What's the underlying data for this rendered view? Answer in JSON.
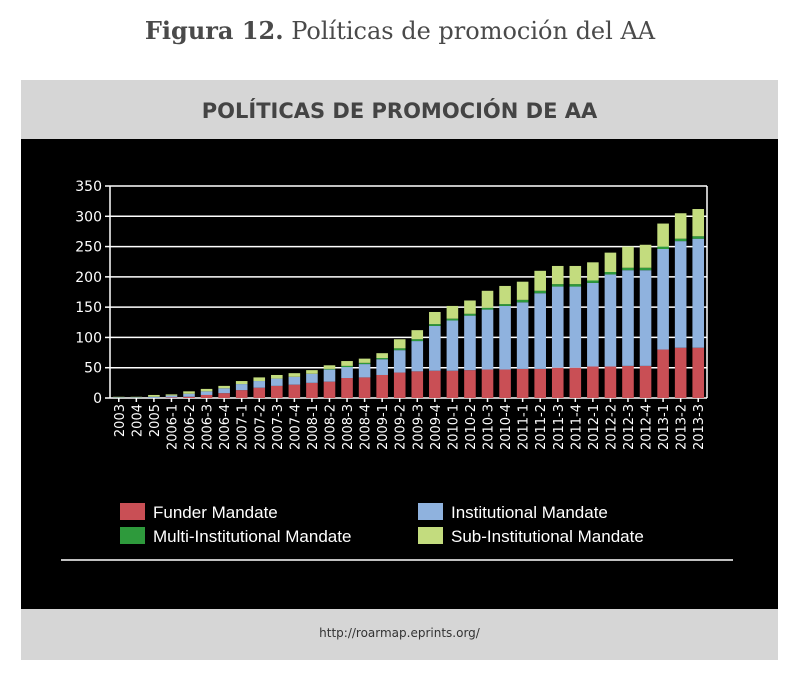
{
  "figure_caption": {
    "label": "Figura 12.",
    "text": "Políticas de promoción del AA"
  },
  "source": "http://roarmap.eprints.org/",
  "chart_data": {
    "type": "bar",
    "stacked": true,
    "title": "POLÍTICAS DE PROMOCIÓN DE AA",
    "xlabel": "",
    "ylabel": "",
    "ylim": [
      0,
      350
    ],
    "yticks": [
      0,
      50,
      100,
      150,
      200,
      250,
      300,
      350
    ],
    "legend_position": "bottom",
    "categories": [
      "2003",
      "2004",
      "2005",
      "2006-1",
      "2006-2",
      "2006-3",
      "2006-4",
      "2007-1",
      "2007-2",
      "2007-3",
      "2007-4",
      "2008-1",
      "2008-2",
      "2008-3",
      "2008-4",
      "2009-1",
      "2009-2",
      "2009-3",
      "2009-4",
      "2010-1",
      "2010-2",
      "2010-3",
      "2010-4",
      "2011-1",
      "2011-2",
      "2011-3",
      "2011-4",
      "2012-1",
      "2012-2",
      "2012-3",
      "2012-4",
      "2013-1",
      "2013-2",
      "2013-3"
    ],
    "series": [
      {
        "name": "Funder Mandate",
        "color": "#c94f55",
        "values": [
          0,
          0,
          0,
          1,
          2,
          5,
          8,
          13,
          17,
          20,
          22,
          25,
          27,
          33,
          34,
          38,
          42,
          44,
          45,
          45,
          46,
          47,
          47,
          48,
          48,
          50,
          50,
          52,
          52,
          53,
          53,
          80,
          83,
          83
        ]
      },
      {
        "name": "Institutional Mandate",
        "color": "#8fb2de",
        "values": [
          1,
          1,
          2,
          3,
          5,
          6,
          8,
          10,
          11,
          12,
          13,
          15,
          20,
          18,
          22,
          26,
          37,
          50,
          74,
          83,
          90,
          99,
          105,
          110,
          125,
          134,
          134,
          138,
          152,
          158,
          158,
          166,
          176,
          180
        ]
      },
      {
        "name": "Multi-Institutional Mandate",
        "color": "#2e9a3c",
        "values": [
          0,
          0,
          0,
          0,
          0,
          0,
          0,
          0,
          0,
          0,
          0,
          0,
          1,
          2,
          2,
          2,
          3,
          3,
          3,
          3,
          3,
          3,
          3,
          4,
          4,
          4,
          4,
          4,
          4,
          4,
          4,
          4,
          4,
          4
        ]
      },
      {
        "name": "Sub-Institutional Mandate",
        "color": "#c3dc7e",
        "values": [
          1,
          1,
          3,
          2,
          4,
          4,
          4,
          5,
          6,
          6,
          6,
          6,
          6,
          8,
          7,
          8,
          15,
          15,
          20,
          21,
          22,
          28,
          30,
          30,
          33,
          30,
          30,
          30,
          32,
          35,
          38,
          38,
          42,
          45
        ]
      }
    ]
  }
}
